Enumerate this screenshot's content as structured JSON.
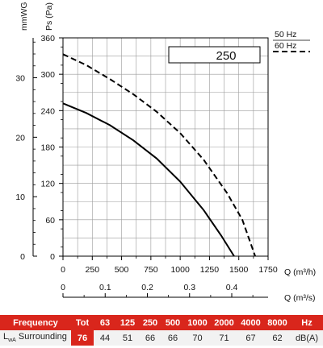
{
  "chart_data": {
    "type": "line",
    "model_label": "250",
    "x_label": "Q (m³/h)",
    "x2_label": "Q (m³/s)",
    "y_label": "Ps (Pa)",
    "y2_label": "mmWG",
    "x_ticks": [
      "0",
      "250",
      "500",
      "750",
      "1000",
      "1250",
      "1500",
      "1750"
    ],
    "x2_ticks": [
      "0",
      "0.1",
      "0.2",
      "0.3",
      "0.4"
    ],
    "y_ticks": [
      "0",
      "60",
      "120",
      "180",
      "240",
      "300",
      "360"
    ],
    "y2_ticks": [
      "0",
      "10",
      "20",
      "30"
    ],
    "xlim": [
      0,
      1750
    ],
    "ylim": [
      0,
      360
    ],
    "grid": true,
    "legend": "top-right",
    "series": [
      {
        "name": "50 Hz",
        "style": "solid",
        "x": [
          0,
          200,
          400,
          600,
          800,
          1000,
          1200,
          1350,
          1460
        ],
        "y": [
          252,
          236,
          216,
          191,
          161,
          123,
          76,
          34,
          0
        ]
      },
      {
        "name": "60 Hz",
        "style": "dashed",
        "x": [
          0,
          200,
          400,
          600,
          800,
          1000,
          1200,
          1400,
          1530,
          1640
        ],
        "y": [
          333,
          315,
          292,
          267,
          238,
          203,
          159,
          104,
          60,
          0
        ]
      }
    ]
  },
  "sound_table": {
    "header": [
      "Frequency",
      "Tot",
      "63",
      "125",
      "250",
      "500",
      "1000",
      "2000",
      "4000",
      "8000",
      "Hz"
    ],
    "row_label_main": "L",
    "row_label_sub": "wA",
    "row_label_rest": " Surrounding",
    "values": [
      "76",
      "44",
      "51",
      "66",
      "66",
      "70",
      "71",
      "67",
      "62",
      "dB(A)"
    ]
  }
}
